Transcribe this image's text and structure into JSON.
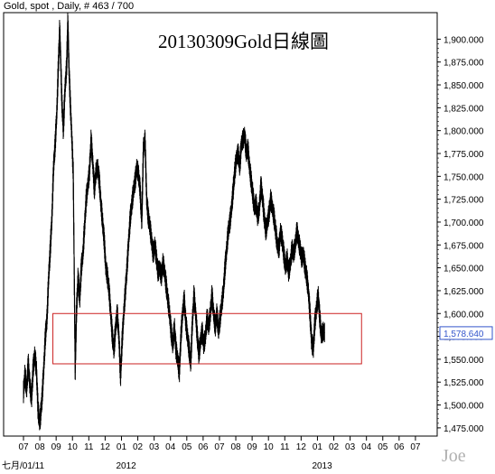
{
  "header": {
    "info_text": "Gold, spot , Daily, # 463 / 700"
  },
  "watermark": "Joe",
  "chart_data": {
    "type": "line",
    "title": "20130309Gold日線圖",
    "symbol": "Gold, spot",
    "interval": "Daily",
    "xlabel": "",
    "ylabel": "",
    "x_ticks": [
      "07",
      "08",
      "09",
      "10",
      "11",
      "12",
      "01",
      "02",
      "03",
      "04",
      "05",
      "06",
      "07",
      "08",
      "09",
      "10",
      "11",
      "12",
      "01",
      "02",
      "03",
      "04",
      "05",
      "06",
      "07"
    ],
    "x_sub_labels": [
      {
        "label": "七月/01/11",
        "month_index": 0
      },
      {
        "label": "2012",
        "month_index": 6
      },
      {
        "label": "2013",
        "month_index": 18
      }
    ],
    "x_unit": "month index from July 2011",
    "x_range": [
      0,
      25
    ],
    "y_ticks": [
      1475,
      1500,
      1525,
      1550,
      1575,
      1600,
      1625,
      1650,
      1675,
      1700,
      1725,
      1750,
      1775,
      1800,
      1825,
      1850,
      1875,
      1900
    ],
    "y_tick_labels": [
      "1,475.000",
      "1,500.000",
      "1,525.000",
      "1,550.000",
      "1,575.000",
      "1,600.000",
      "1,625.000",
      "1,650.000",
      "1,675.000",
      "1,700.000",
      "1,725.000",
      "1,750.000",
      "1,775.000",
      "1,800.000",
      "1,825.000",
      "1,850.000",
      "1,875.000",
      "1,900.000"
    ],
    "ylim": [
      1466,
      1929
    ],
    "last_value": 1578.64,
    "last_value_label": "1,578.640",
    "grid": false,
    "colors": {
      "series": "#000000",
      "box": "#cc2222",
      "last_value": "#3355cc"
    },
    "highlight_box": {
      "x_start": 1.8,
      "x_end": 20.7,
      "y_low": 1545,
      "y_high": 1600
    },
    "series": [
      {
        "values": [
          [
            0.0,
            1512
          ],
          [
            0.1,
            1533
          ],
          [
            0.2,
            1516
          ],
          [
            0.3,
            1545
          ],
          [
            0.4,
            1522
          ],
          [
            0.5,
            1506
          ],
          [
            0.6,
            1540
          ],
          [
            0.7,
            1555
          ],
          [
            0.8,
            1538
          ],
          [
            0.9,
            1495
          ],
          [
            1.0,
            1480
          ],
          [
            1.05,
            1488
          ],
          [
            1.15,
            1508
          ],
          [
            1.25,
            1540
          ],
          [
            1.35,
            1575
          ],
          [
            1.45,
            1595
          ],
          [
            1.55,
            1640
          ],
          [
            1.65,
            1670
          ],
          [
            1.75,
            1705
          ],
          [
            1.85,
            1760
          ],
          [
            1.95,
            1785
          ],
          [
            2.05,
            1820
          ],
          [
            2.15,
            1875
          ],
          [
            2.22,
            1910
          ],
          [
            2.28,
            1880
          ],
          [
            2.35,
            1835
          ],
          [
            2.45,
            1800
          ],
          [
            2.55,
            1845
          ],
          [
            2.65,
            1870
          ],
          [
            2.72,
            1920
          ],
          [
            2.78,
            1875
          ],
          [
            2.85,
            1840
          ],
          [
            2.95,
            1800
          ],
          [
            3.05,
            1755
          ],
          [
            3.12,
            1630
          ],
          [
            3.17,
            1535
          ],
          [
            3.25,
            1600
          ],
          [
            3.35,
            1640
          ],
          [
            3.45,
            1615
          ],
          [
            3.55,
            1650
          ],
          [
            3.65,
            1665
          ],
          [
            3.75,
            1695
          ],
          [
            3.85,
            1725
          ],
          [
            3.95,
            1740
          ],
          [
            4.05,
            1755
          ],
          [
            4.15,
            1790
          ],
          [
            4.25,
            1765
          ],
          [
            4.35,
            1735
          ],
          [
            4.45,
            1755
          ],
          [
            4.55,
            1760
          ],
          [
            4.65,
            1745
          ],
          [
            4.75,
            1720
          ],
          [
            4.85,
            1700
          ],
          [
            4.95,
            1680
          ],
          [
            5.05,
            1650
          ],
          [
            5.15,
            1640
          ],
          [
            5.25,
            1625
          ],
          [
            5.35,
            1600
          ],
          [
            5.45,
            1575
          ],
          [
            5.55,
            1560
          ],
          [
            5.65,
            1585
          ],
          [
            5.75,
            1600
          ],
          [
            5.85,
            1575
          ],
          [
            5.95,
            1530
          ],
          [
            6.05,
            1570
          ],
          [
            6.15,
            1600
          ],
          [
            6.25,
            1625
          ],
          [
            6.35,
            1650
          ],
          [
            6.45,
            1680
          ],
          [
            6.55,
            1705
          ],
          [
            6.65,
            1720
          ],
          [
            6.75,
            1735
          ],
          [
            6.85,
            1745
          ],
          [
            6.95,
            1760
          ],
          [
            7.05,
            1752
          ],
          [
            7.15,
            1735
          ],
          [
            7.25,
            1700
          ],
          [
            7.35,
            1780
          ],
          [
            7.45,
            1790
          ],
          [
            7.55,
            1725
          ],
          [
            7.65,
            1705
          ],
          [
            7.75,
            1695
          ],
          [
            7.85,
            1680
          ],
          [
            7.95,
            1665
          ],
          [
            8.05,
            1675
          ],
          [
            8.15,
            1660
          ],
          [
            8.25,
            1645
          ],
          [
            8.35,
            1650
          ],
          [
            8.45,
            1640
          ],
          [
            8.55,
            1655
          ],
          [
            8.65,
            1645
          ],
          [
            8.75,
            1630
          ],
          [
            8.85,
            1615
          ],
          [
            8.95,
            1600
          ],
          [
            9.05,
            1580
          ],
          [
            9.15,
            1565
          ],
          [
            9.25,
            1585
          ],
          [
            9.35,
            1560
          ],
          [
            9.45,
            1550
          ],
          [
            9.55,
            1535
          ],
          [
            9.65,
            1575
          ],
          [
            9.75,
            1600
          ],
          [
            9.85,
            1615
          ],
          [
            9.95,
            1590
          ],
          [
            10.05,
            1575
          ],
          [
            10.15,
            1560
          ],
          [
            10.25,
            1545
          ],
          [
            10.35,
            1590
          ],
          [
            10.45,
            1620
          ],
          [
            10.55,
            1600
          ],
          [
            10.65,
            1575
          ],
          [
            10.75,
            1555
          ],
          [
            10.85,
            1570
          ],
          [
            10.95,
            1580
          ],
          [
            11.05,
            1565
          ],
          [
            11.15,
            1575
          ],
          [
            11.25,
            1595
          ],
          [
            11.35,
            1585
          ],
          [
            11.45,
            1600
          ],
          [
            11.55,
            1620
          ],
          [
            11.65,
            1600
          ],
          [
            11.75,
            1585
          ],
          [
            11.85,
            1600
          ],
          [
            11.95,
            1580
          ],
          [
            12.05,
            1595
          ],
          [
            12.15,
            1610
          ],
          [
            12.25,
            1625
          ],
          [
            12.35,
            1650
          ],
          [
            12.45,
            1670
          ],
          [
            12.55,
            1690
          ],
          [
            12.65,
            1700
          ],
          [
            12.75,
            1715
          ],
          [
            12.85,
            1735
          ],
          [
            12.95,
            1755
          ],
          [
            13.05,
            1770
          ],
          [
            13.15,
            1775
          ],
          [
            13.25,
            1760
          ],
          [
            13.35,
            1785
          ],
          [
            13.45,
            1790
          ],
          [
            13.55,
            1795
          ],
          [
            13.65,
            1775
          ],
          [
            13.75,
            1780
          ],
          [
            13.85,
            1760
          ],
          [
            13.95,
            1745
          ],
          [
            14.05,
            1730
          ],
          [
            14.15,
            1715
          ],
          [
            14.25,
            1720
          ],
          [
            14.35,
            1705
          ],
          [
            14.45,
            1715
          ],
          [
            14.55,
            1740
          ],
          [
            14.65,
            1725
          ],
          [
            14.75,
            1705
          ],
          [
            14.85,
            1690
          ],
          [
            14.95,
            1700
          ],
          [
            15.05,
            1710
          ],
          [
            15.15,
            1725
          ],
          [
            15.25,
            1715
          ],
          [
            15.35,
            1705
          ],
          [
            15.45,
            1690
          ],
          [
            15.55,
            1675
          ],
          [
            15.65,
            1670
          ],
          [
            15.75,
            1690
          ],
          [
            15.85,
            1680
          ],
          [
            15.95,
            1665
          ],
          [
            16.05,
            1650
          ],
          [
            16.15,
            1660
          ],
          [
            16.25,
            1645
          ],
          [
            16.35,
            1655
          ],
          [
            16.45,
            1670
          ],
          [
            16.55,
            1665
          ],
          [
            16.65,
            1675
          ],
          [
            16.75,
            1690
          ],
          [
            16.85,
            1680
          ],
          [
            16.95,
            1670
          ],
          [
            17.05,
            1660
          ],
          [
            17.15,
            1665
          ],
          [
            17.25,
            1650
          ],
          [
            17.35,
            1640
          ],
          [
            17.45,
            1625
          ],
          [
            17.55,
            1600
          ],
          [
            17.65,
            1570
          ],
          [
            17.75,
            1560
          ],
          [
            17.85,
            1590
          ],
          [
            17.95,
            1605
          ],
          [
            18.05,
            1620
          ],
          [
            18.15,
            1595
          ],
          [
            18.25,
            1575
          ],
          [
            18.35,
            1580
          ],
          [
            18.45,
            1578.64
          ]
        ]
      }
    ]
  }
}
